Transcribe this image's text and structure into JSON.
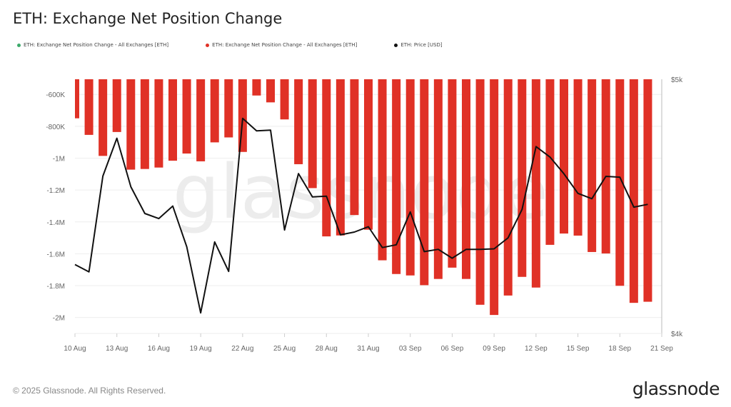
{
  "footer": {
    "copyright": "© 2025 Glassnode. All Rights Reserved.",
    "logo": "glassnode"
  },
  "watermark": "glassnode",
  "colors": {
    "positive": "#3daa6b",
    "negative": "#e03126",
    "price": "#111111",
    "grid": "#eeeeee"
  },
  "chart_data": {
    "type": "bar",
    "title": "ETH: Exchange Net Position Change",
    "legend": [
      {
        "name": "ETH: Exchange Net Position Change - All Exchanges [ETH]",
        "color": "#3daa6b"
      },
      {
        "name": "ETH: Exchange Net Position Change - All Exchanges [ETH]",
        "color": "#e03126"
      },
      {
        "name": "ETH: Price [USD]",
        "color": "#111111"
      }
    ],
    "legend_placement": "top-left",
    "grid": true,
    "x": [
      "2025-08-10",
      "2025-08-11",
      "2025-08-12",
      "2025-08-13",
      "2025-08-14",
      "2025-08-15",
      "2025-08-16",
      "2025-08-17",
      "2025-08-18",
      "2025-08-19",
      "2025-08-20",
      "2025-08-21",
      "2025-08-22",
      "2025-08-23",
      "2025-08-24",
      "2025-08-25",
      "2025-08-26",
      "2025-08-27",
      "2025-08-28",
      "2025-08-29",
      "2025-08-30",
      "2025-08-31",
      "2025-09-01",
      "2025-09-02",
      "2025-09-03",
      "2025-09-04",
      "2025-09-05",
      "2025-09-06",
      "2025-09-07",
      "2025-09-08",
      "2025-09-09",
      "2025-09-10",
      "2025-09-11",
      "2025-09-12",
      "2025-09-13",
      "2025-09-14",
      "2025-09-15",
      "2025-09-16",
      "2025-09-17",
      "2025-09-18",
      "2025-09-19",
      "2025-09-20"
    ],
    "xlim": [
      "2025-08-10",
      "2025-09-21"
    ],
    "x_ticks": [
      "10 Aug",
      "13 Aug",
      "16 Aug",
      "19 Aug",
      "22 Aug",
      "25 Aug",
      "28 Aug",
      "31 Aug",
      "03 Sep",
      "06 Sep",
      "09 Sep",
      "12 Sep",
      "15 Sep",
      "18 Sep",
      "21 Sep"
    ],
    "series": [
      {
        "name": "ETH: Exchange Net Position Change - All Exchanges [ETH]",
        "axis": "left",
        "type": "bar",
        "values": [
          -750000,
          -854000,
          -986000,
          -836000,
          -1072000,
          -1068000,
          -1059000,
          -1016000,
          -971000,
          -1020000,
          -901000,
          -870000,
          -961000,
          -607000,
          -650000,
          -757000,
          -1038000,
          -1188000,
          -1491000,
          -1485000,
          -1357000,
          -1449000,
          -1641000,
          -1727000,
          -1736000,
          -1797000,
          -1758000,
          -1687000,
          -1758000,
          -1920000,
          -1984000,
          -1862000,
          -1745000,
          -1812000,
          -1544000,
          -1473000,
          -1486000,
          -1589000,
          -1598000,
          -1801000,
          -1908000,
          -1901000
        ]
      },
      {
        "name": "ETH: Price [USD]",
        "axis": "right",
        "type": "line",
        "values": [
          4271,
          4242,
          4619,
          4768,
          4577,
          4472,
          4452,
          4501,
          4341,
          4081,
          4360,
          4244,
          4846,
          4797,
          4800,
          4407,
          4629,
          4537,
          4540,
          4388,
          4399,
          4420,
          4338,
          4349,
          4478,
          4322,
          4331,
          4296,
          4331,
          4331,
          4333,
          4376,
          4488,
          4735,
          4694,
          4628,
          4551,
          4530,
          4618,
          4615,
          4497,
          4508
        ]
      }
    ],
    "y_left": {
      "ticks": [
        -600000,
        -800000,
        -1000000,
        -1200000,
        -1400000,
        -1600000,
        -1800000,
        -2000000
      ],
      "tick_labels": [
        "-600K",
        "-800K",
        "-1M",
        "-1.2M",
        "-1.4M",
        "-1.6M",
        "-1.8M",
        "-2M"
      ],
      "ylim": [
        -2100000,
        -505000
      ]
    },
    "y_right": {
      "ticks": [
        5000,
        4000
      ],
      "tick_labels": [
        "$5k",
        "$4k"
      ],
      "ylim": [
        4000,
        5000
      ]
    }
  }
}
